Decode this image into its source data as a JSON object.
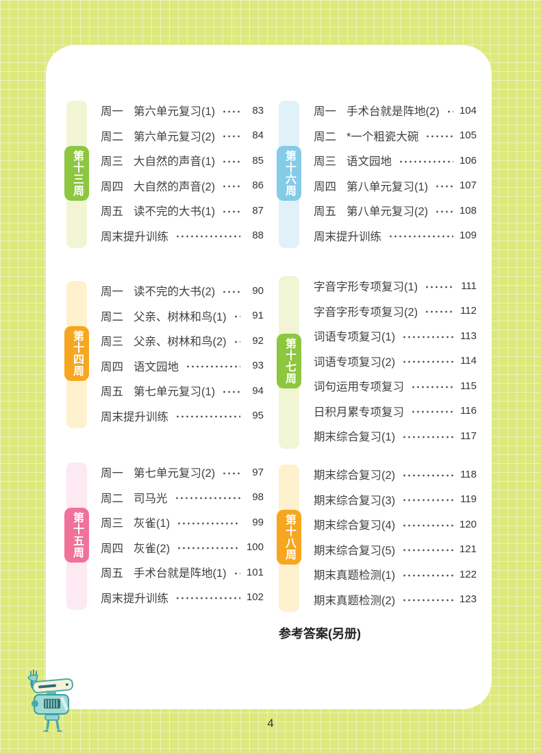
{
  "colors": {
    "green": {
      "tab": "#8dc63f",
      "strip": "#f1f5d4"
    },
    "orange": {
      "tab": "#f7a61f",
      "strip": "#fdf2cd"
    },
    "pink": {
      "tab": "#f0719a",
      "strip": "#fce9f1"
    },
    "blue": {
      "tab": "#84cbe8",
      "strip": "#e0f1fa"
    },
    "background": "#dde97d",
    "card": "#ffffff"
  },
  "footer": {
    "answers_note": "参考答案(另册)",
    "page_number": "4"
  },
  "columns": [
    {
      "sections": [
        {
          "tab": "第十三周",
          "theme": "green",
          "entries": [
            {
              "day": "周一",
              "title": "第六单元复习(1)",
              "page": "83"
            },
            {
              "day": "周二",
              "title": "第六单元复习(2)",
              "page": "84"
            },
            {
              "day": "周三",
              "title": "大自然的声音(1)",
              "page": "85"
            },
            {
              "day": "周四",
              "title": "大自然的声音(2)",
              "page": "86"
            },
            {
              "day": "周五",
              "title": "读不完的大书(1)",
              "page": "87"
            },
            {
              "day": "",
              "title": "周末提升训练",
              "page": "88"
            }
          ]
        },
        {
          "tab": "第十四周",
          "theme": "orange",
          "entries": [
            {
              "day": "周一",
              "title": "读不完的大书(2)",
              "page": "90"
            },
            {
              "day": "周二",
              "title": "父亲、树林和鸟(1)",
              "page": "91"
            },
            {
              "day": "周三",
              "title": "父亲、树林和鸟(2)",
              "page": "92"
            },
            {
              "day": "周四",
              "title": "语文园地",
              "page": "93"
            },
            {
              "day": "周五",
              "title": "第七单元复习(1)",
              "page": "94"
            },
            {
              "day": "",
              "title": "周末提升训练",
              "page": "95"
            }
          ]
        },
        {
          "tab": "第十五周",
          "theme": "pink",
          "entries": [
            {
              "day": "周一",
              "title": "第七单元复习(2)",
              "page": "97"
            },
            {
              "day": "周二",
              "title": "司马光",
              "page": "98"
            },
            {
              "day": "周三",
              "title": "灰雀(1)",
              "page": "99"
            },
            {
              "day": "周四",
              "title": "灰雀(2)",
              "page": "100"
            },
            {
              "day": "周五",
              "title": "手术台就是阵地(1)",
              "page": "101"
            },
            {
              "day": "",
              "title": "周末提升训练",
              "page": "102"
            }
          ]
        }
      ]
    },
    {
      "sections": [
        {
          "tab": "第十六周",
          "theme": "blue",
          "entries": [
            {
              "day": "周一",
              "title": "手术台就是阵地(2)",
              "page": "104"
            },
            {
              "day": "周二",
              "title": "*一个粗瓷大碗",
              "page": "105"
            },
            {
              "day": "周三",
              "title": "语文园地",
              "page": "106"
            },
            {
              "day": "周四",
              "title": "第八单元复习(1)",
              "page": "107"
            },
            {
              "day": "周五",
              "title": "第八单元复习(2)",
              "page": "108"
            },
            {
              "day": "",
              "title": "周末提升训练",
              "page": "109"
            }
          ]
        },
        {
          "tab": "第十七周",
          "theme": "green",
          "entries": [
            {
              "day": "",
              "title": "字音字形专项复习(1)",
              "page": "111"
            },
            {
              "day": "",
              "title": "字音字形专项复习(2)",
              "page": "112"
            },
            {
              "day": "",
              "title": "词语专项复习(1)",
              "page": "113"
            },
            {
              "day": "",
              "title": "词语专项复习(2)",
              "page": "114"
            },
            {
              "day": "",
              "title": "词句运用专项复习",
              "page": "115"
            },
            {
              "day": "",
              "title": "日积月累专项复习",
              "page": "116"
            },
            {
              "day": "",
              "title": "期末综合复习(1)",
              "page": "117"
            }
          ]
        },
        {
          "tab": "第十八周",
          "theme": "orange",
          "entries": [
            {
              "day": "",
              "title": "期末综合复习(2)",
              "page": "118"
            },
            {
              "day": "",
              "title": "期末综合复习(3)",
              "page": "119"
            },
            {
              "day": "",
              "title": "期末综合复习(4)",
              "page": "120"
            },
            {
              "day": "",
              "title": "期末综合复习(5)",
              "page": "121"
            },
            {
              "day": "",
              "title": "期末真题检测(1)",
              "page": "122"
            },
            {
              "day": "",
              "title": "期末真题检测(2)",
              "page": "123"
            }
          ]
        }
      ]
    }
  ]
}
